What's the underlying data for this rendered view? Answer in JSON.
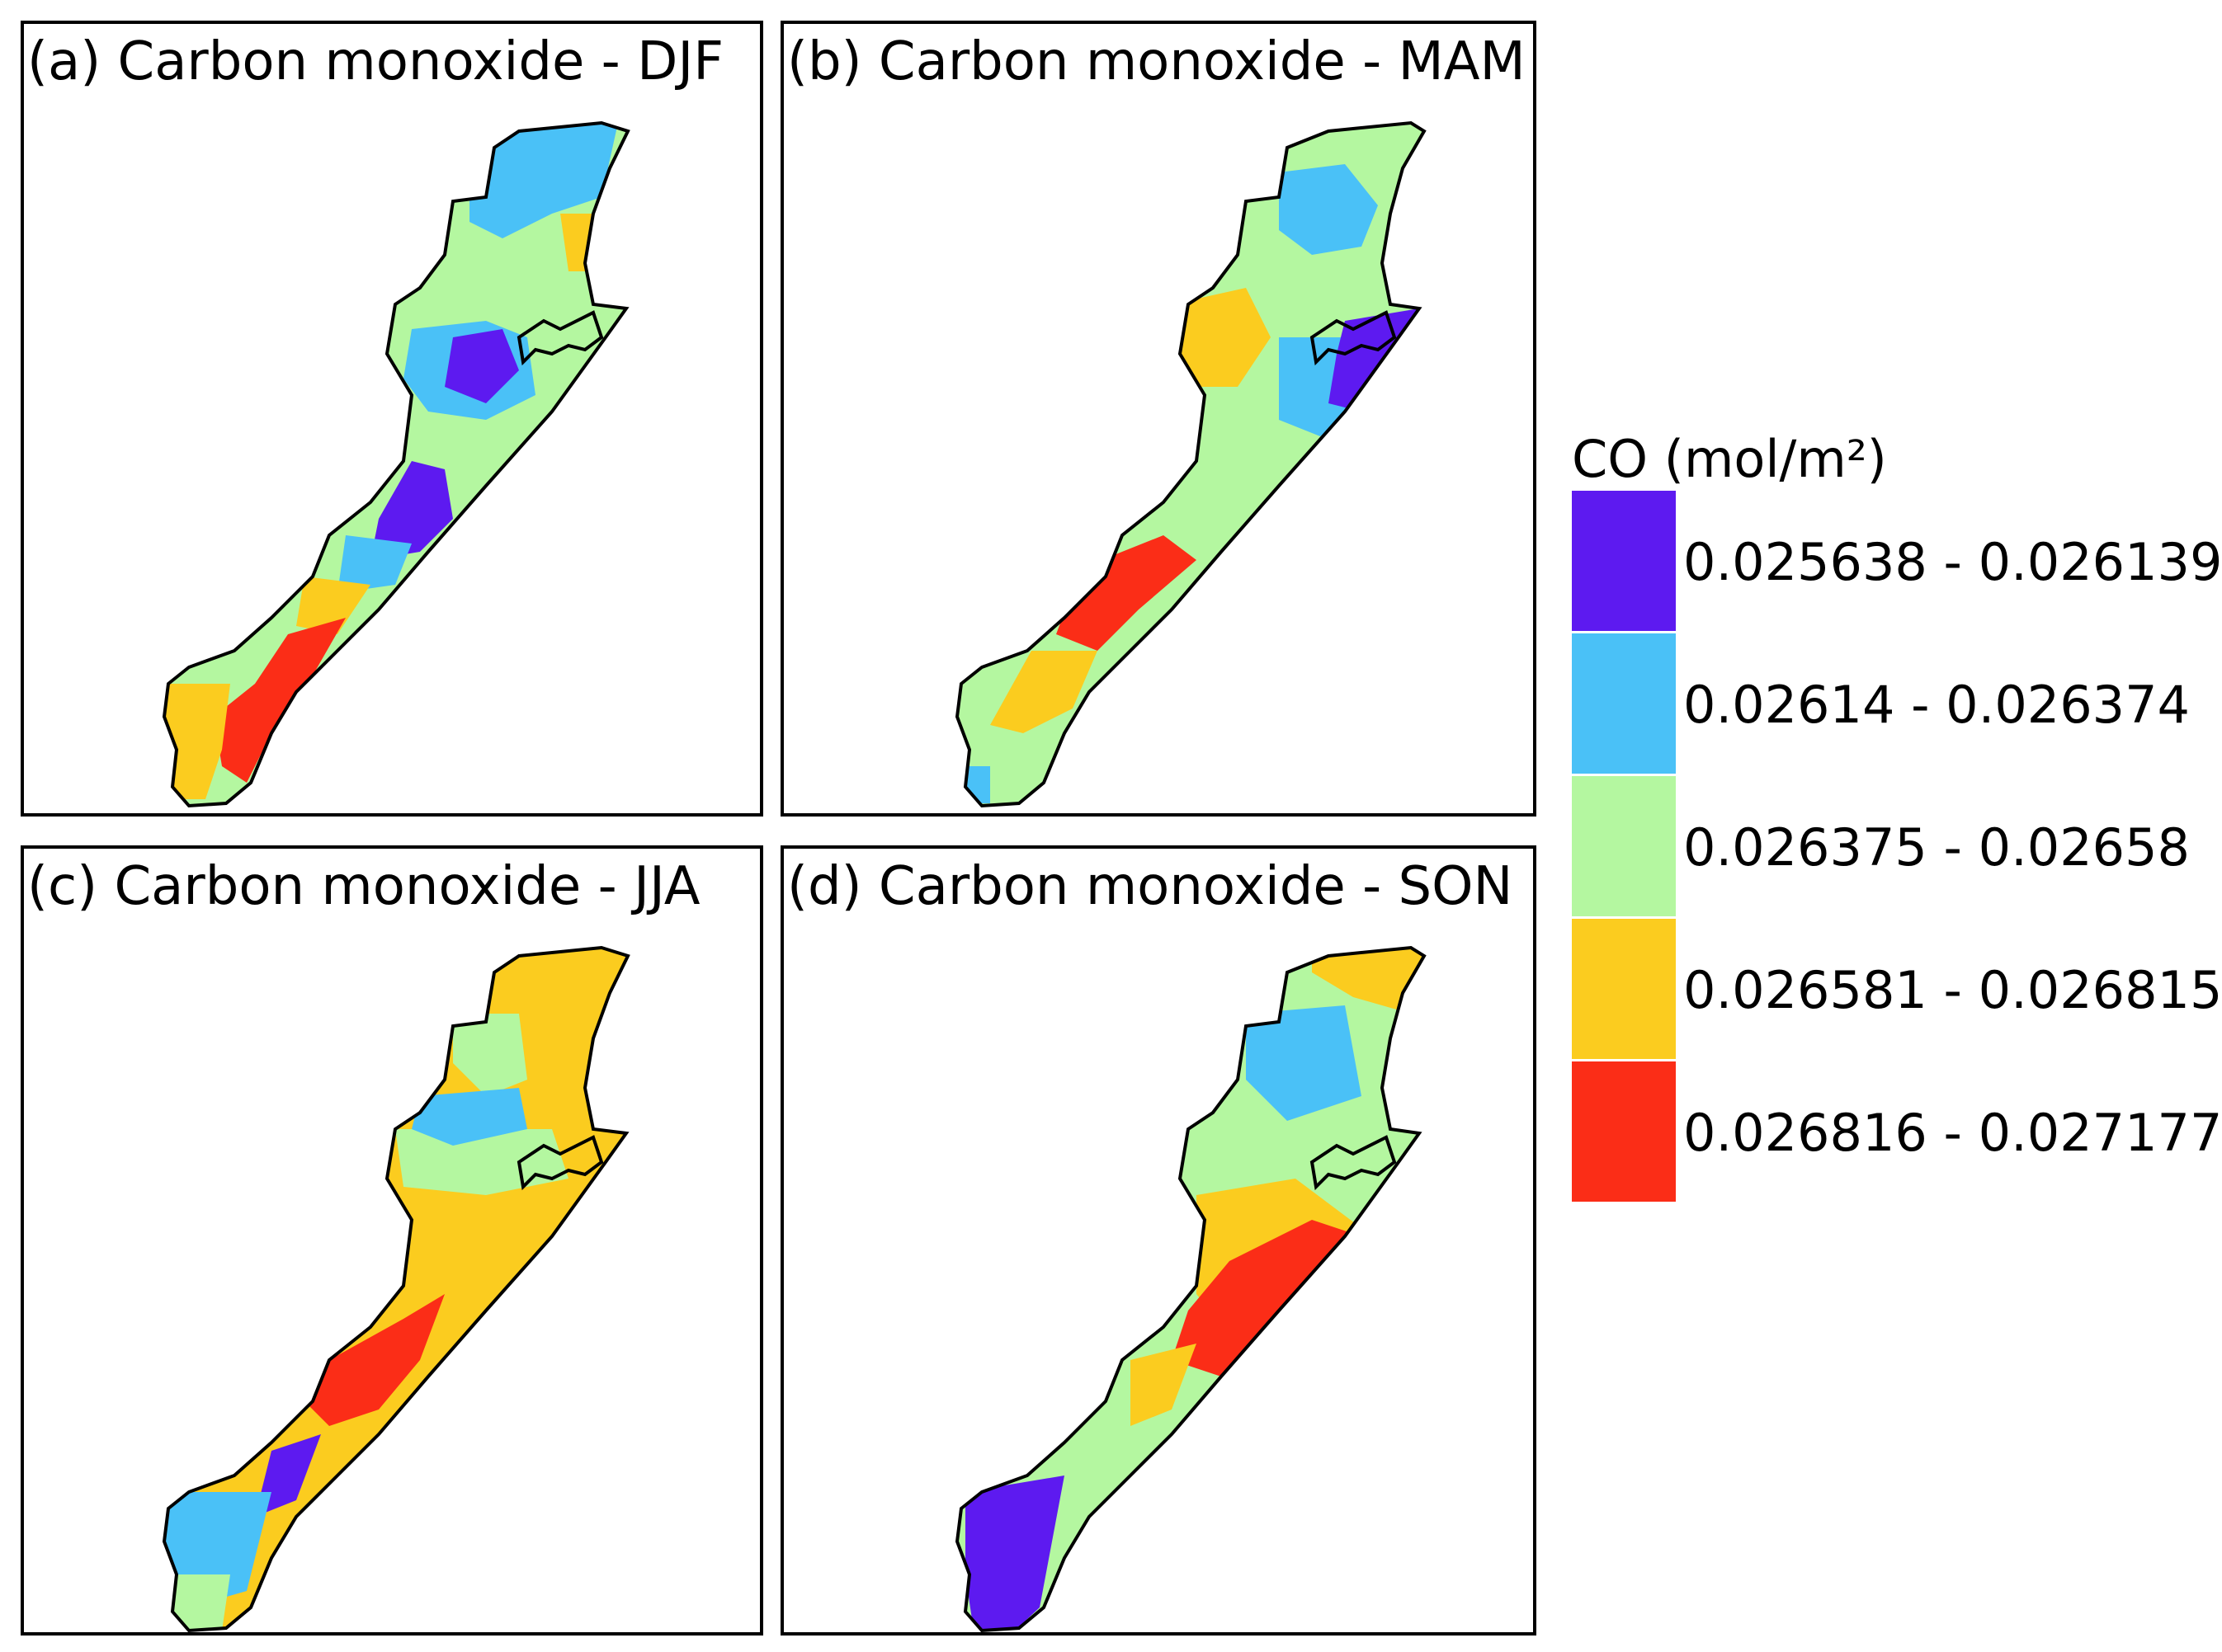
{
  "legend": {
    "title": "CO (mol/m²)",
    "classes": [
      {
        "label": "0.025638 - 0.026139",
        "color": "#5d1af0"
      },
      {
        "label": "0.02614 - 0.026374",
        "color": "#4ac1f7"
      },
      {
        "label": "0.026375 - 0.02658",
        "color": "#b4f7a0"
      },
      {
        "label": "0.026581 - 0.026815",
        "color": "#fbcc1f"
      },
      {
        "label": "0.026816 - 0.027177",
        "color": "#fb2d17"
      }
    ]
  },
  "panels": [
    {
      "id": "a",
      "title": "(a) Carbon monoxide - DJF"
    },
    {
      "id": "b",
      "title": "(b) Carbon monoxide - MAM"
    },
    {
      "id": "c",
      "title": "(c) Carbon monoxide - JJA"
    },
    {
      "id": "d",
      "title": "(d) Carbon monoxide - SON"
    }
  ],
  "colors": {
    "outline": "#000000",
    "background": "#ffffff"
  }
}
